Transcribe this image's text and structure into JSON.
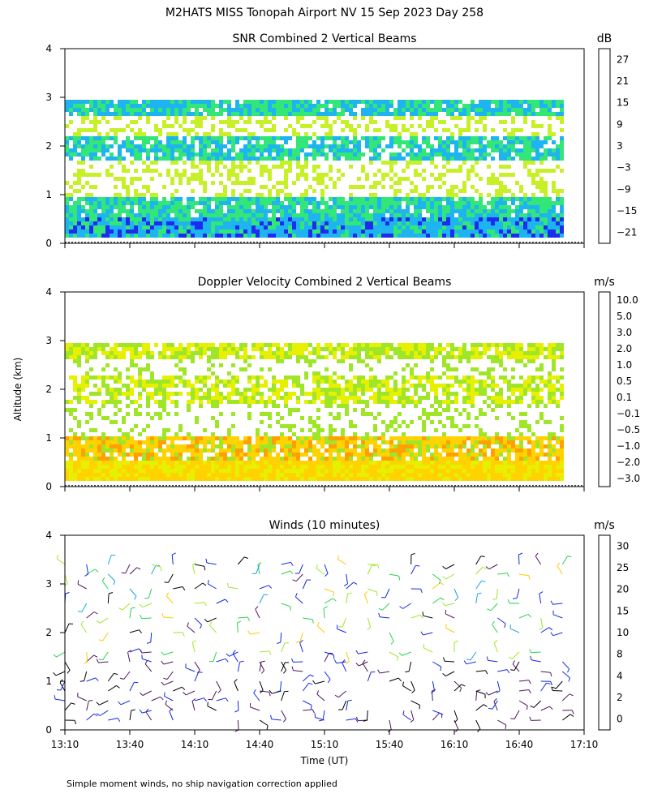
{
  "title": "M2HATS MISS Tonopah Airport NV  15 Sep 2023 Day 258",
  "shared_ylabel": "Altitude (km)",
  "shared_xlabel": "Time (UT)",
  "footnote": "Simple moment winds, no ship navigation correction applied",
  "x_ticks": [
    "13:10",
    "13:40",
    "14:10",
    "14:40",
    "15:10",
    "15:40",
    "16:10",
    "16:40",
    "17:10"
  ],
  "y_ticks": [
    "0",
    "1",
    "2",
    "3",
    "4"
  ],
  "chart_data": [
    {
      "type": "heatmap",
      "title": "SNR Combined 2 Vertical Beams",
      "unit": "dB",
      "xlim": [
        "13:10",
        "17:10"
      ],
      "ylim": [
        0,
        4
      ],
      "colorbar": {
        "labels": [
          "27",
          "21",
          "15",
          "9",
          "3",
          "−3",
          "−9",
          "−15",
          "−21"
        ],
        "colors": [
          "#ffc800",
          "#ff8c00",
          "#ff2800",
          "#5a0a5a",
          "#6a0ab4",
          "#1e2cf0",
          "#1eb4f0",
          "#32e678",
          "#c8f028"
        ]
      },
      "layers": [
        {
          "name": "boundary-layer",
          "alt_km": [
            0.15,
            1.0
          ],
          "dominant": "-15 to -3 dB"
        },
        {
          "name": "cloud-layer-2km",
          "alt_km": [
            1.8,
            2.2
          ],
          "dominant": "-15 dB"
        },
        {
          "name": "cloud-top-2.9km",
          "alt_km": [
            2.75,
            2.95
          ],
          "dominant": "-15 to -9 dB"
        }
      ],
      "gate_min_km": 0.15,
      "gate_max_km": 2.95,
      "end_time": "17:00"
    },
    {
      "type": "heatmap",
      "title": "Doppler Velocity Combined 2 Vertical Beams",
      "unit": "m/s",
      "xlim": [
        "13:10",
        "17:10"
      ],
      "ylim": [
        0,
        4
      ],
      "colorbar": {
        "labels": [
          "10.0",
          "5.0",
          "3.0",
          "2.0",
          "1.0",
          "0.5",
          "0.1",
          "−0.1",
          "−0.5",
          "−1.0",
          "−2.0",
          "−3.0"
        ],
        "colors": [
          "#2d0a3c",
          "#55128c",
          "#3214c8",
          "#1e50f0",
          "#1eb4f0",
          "#32e632",
          "#a0e628",
          "#e6f000",
          "#ffd200",
          "#ffa000",
          "#ff6e00",
          "#ff1e00"
        ]
      },
      "dominant": "-0.1 to -1.0 m/s"
    },
    {
      "type": "scatter",
      "title": "Winds (10 minutes)",
      "unit": "m/s",
      "xlim": [
        "13:10",
        "17:10"
      ],
      "ylim": [
        0,
        4
      ],
      "colorbar": {
        "labels": [
          "30",
          "25",
          "20",
          "15",
          "10",
          "8",
          "4",
          "2",
          "0"
        ],
        "colors": [
          "#e60000",
          "#ff6400",
          "#ffc800",
          "#a0e628",
          "#28d250",
          "#1ea0e6",
          "#1428e6",
          "#50145a",
          "#000000"
        ]
      },
      "times": [
        "13:10",
        "13:20",
        "13:30",
        "13:40",
        "13:50",
        "14:00",
        "14:10",
        "14:20",
        "14:30",
        "14:40",
        "14:50",
        "15:00",
        "15:10",
        "15:20",
        "15:30",
        "15:40",
        "15:50",
        "16:00",
        "16:10",
        "16:20",
        "16:30",
        "16:40",
        "16:50",
        "17:00"
      ],
      "altitudes_km": [
        0.2,
        0.4,
        0.6,
        0.8,
        1.0,
        1.2,
        1.4,
        1.6,
        2.0,
        2.3,
        2.6,
        2.9,
        3.2,
        3.4
      ]
    }
  ]
}
